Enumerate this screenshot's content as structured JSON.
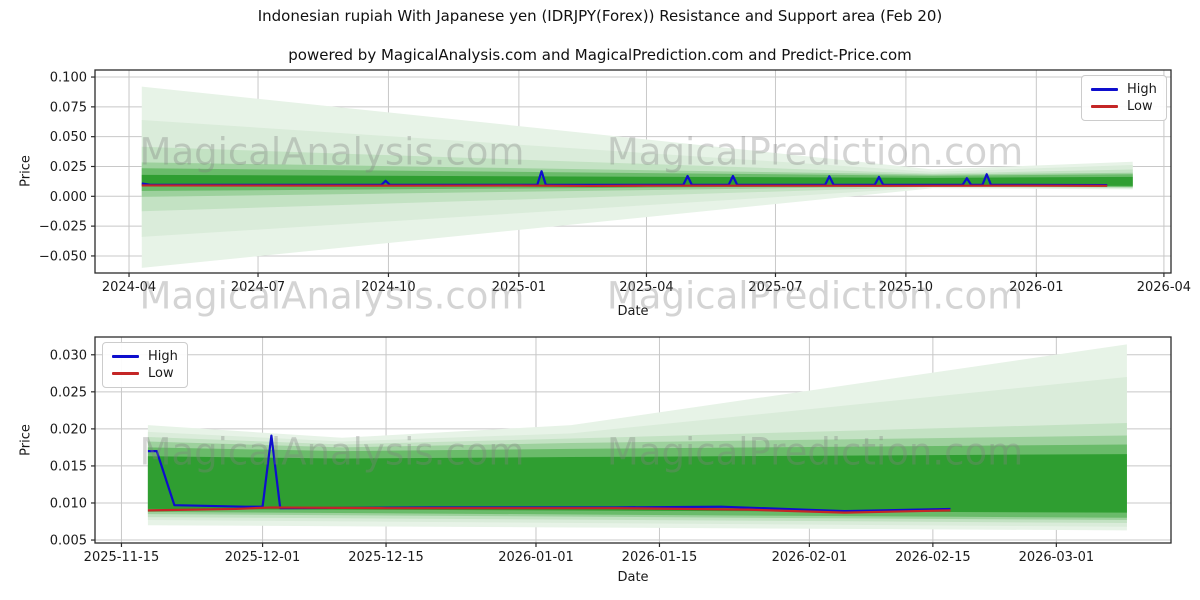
{
  "header": {
    "title": "Indonesian rupiah With Japanese yen (IDRJPY(Forex)) Resistance and Support area (Feb 20)",
    "subtitle": "powered by MagicalAnalysis.com and MagicalPrediction.com and Predict-Price.com"
  },
  "watermarks": {
    "analysis": "MagicalAnalysis.com",
    "prediction": "MagicalPrediction.com"
  },
  "colors": {
    "high": "#0e0ecd",
    "low": "#c42626",
    "band_core": "#2f9e31",
    "grid": "#c8c8c8",
    "spine": "#2b2b2b",
    "tick_label": "#1a1a1a",
    "watermark": "#8c8c8c"
  },
  "chart_data": [
    {
      "type": "area",
      "name": "resistance-support-full-history",
      "xlabel": "Date",
      "ylabel": "Price",
      "grid": true,
      "x_domain": [
        "2024-03-08",
        "2026-04-06"
      ],
      "y_domain": [
        -0.0643,
        0.1059
      ],
      "legend": {
        "position": "upper-right",
        "items": [
          {
            "label": "High"
          },
          {
            "label": "Low"
          }
        ]
      },
      "x_ticks": [
        {
          "date": "2024-04-01",
          "label": "2024-04"
        },
        {
          "date": "2024-07-01",
          "label": "2024-07"
        },
        {
          "date": "2024-10-01",
          "label": "2024-10"
        },
        {
          "date": "2025-01-01",
          "label": "2025-01"
        },
        {
          "date": "2025-04-01",
          "label": "2025-04"
        },
        {
          "date": "2025-07-01",
          "label": "2025-07"
        },
        {
          "date": "2025-10-01",
          "label": "2025-10"
        },
        {
          "date": "2026-01-01",
          "label": "2026-01"
        },
        {
          "date": "2026-04-01",
          "label": "2026-04"
        }
      ],
      "y_ticks": [
        {
          "value": 0.1,
          "label": "0.100"
        },
        {
          "value": 0.075,
          "label": "0.075"
        },
        {
          "value": 0.05,
          "label": "0.050"
        },
        {
          "value": 0.025,
          "label": "0.025"
        },
        {
          "value": 0.0,
          "label": "0.000"
        },
        {
          "value": -0.025,
          "label": "−0.025"
        },
        {
          "value": -0.05,
          "label": "−0.050"
        }
      ],
      "bands": [
        {
          "name": "band-outer",
          "color": "#e7f3e7",
          "top": [
            [
              "2024-04-10",
              0.092
            ],
            [
              "2025-10-20",
              0.0225
            ],
            [
              "2026-03-10",
              0.029
            ]
          ],
          "bottom": [
            [
              "2024-04-10",
              -0.06
            ],
            [
              "2025-10-20",
              0.0068
            ],
            [
              "2026-03-10",
              0.0058
            ]
          ]
        },
        {
          "name": "band-2",
          "color": "#daecda",
          "top": [
            [
              "2024-04-10",
              0.064
            ],
            [
              "2025-10-20",
              0.0205
            ],
            [
              "2026-03-10",
              0.0262
            ]
          ],
          "bottom": [
            [
              "2024-04-10",
              -0.034
            ],
            [
              "2025-10-20",
              0.0076
            ],
            [
              "2026-03-10",
              0.0064
            ]
          ]
        },
        {
          "name": "band-3",
          "color": "#c3e2c3",
          "top": [
            [
              "2024-04-10",
              0.0415
            ],
            [
              "2025-10-20",
              0.019
            ],
            [
              "2026-03-10",
              0.0225
            ]
          ],
          "bottom": [
            [
              "2024-04-10",
              -0.0125
            ],
            [
              "2025-10-20",
              0.0081
            ],
            [
              "2026-03-10",
              0.007
            ]
          ]
        },
        {
          "name": "band-4",
          "color": "#9dd19d",
          "top": [
            [
              "2024-04-10",
              0.0285
            ],
            [
              "2025-10-20",
              0.0182
            ],
            [
              "2026-03-10",
              0.0198
            ]
          ],
          "bottom": [
            [
              "2024-04-10",
              -0.0005
            ],
            [
              "2025-10-20",
              0.0085
            ],
            [
              "2026-03-10",
              0.0076
            ]
          ]
        },
        {
          "name": "band-5",
          "color": "#6abb6a",
          "top": [
            [
              "2024-04-10",
              0.0235
            ],
            [
              "2025-10-20",
              0.0172
            ],
            [
              "2026-03-10",
              0.0185
            ]
          ],
          "bottom": [
            [
              "2024-04-10",
              0.0045
            ],
            [
              "2025-10-20",
              0.0088
            ],
            [
              "2026-03-10",
              0.0079
            ]
          ]
        },
        {
          "name": "band-core",
          "color": "#2f9e31",
          "top": [
            [
              "2024-04-10",
              0.018
            ],
            [
              "2025-10-20",
              0.0155
            ],
            [
              "2026-03-10",
              0.0163
            ]
          ],
          "bottom": [
            [
              "2024-04-10",
              0.0085
            ],
            [
              "2025-10-20",
              0.0091
            ],
            [
              "2026-03-10",
              0.0087
            ]
          ]
        }
      ],
      "series": [
        {
          "name": "High",
          "color": "#0e0ecd",
          "points": [
            [
              "2024-04-10",
              0.0108
            ],
            [
              "2024-04-16",
              0.0096
            ],
            [
              "2024-09-26",
              0.0096
            ],
            [
              "2024-09-29",
              0.013
            ],
            [
              "2024-10-02",
              0.0096
            ],
            [
              "2025-01-14",
              0.0096
            ],
            [
              "2025-01-17",
              0.021
            ],
            [
              "2025-01-20",
              0.0096
            ],
            [
              "2025-04-27",
              0.0096
            ],
            [
              "2025-04-30",
              0.017
            ],
            [
              "2025-05-03",
              0.0096
            ],
            [
              "2025-05-29",
              0.0096
            ],
            [
              "2025-06-01",
              0.017
            ],
            [
              "2025-06-04",
              0.0096
            ],
            [
              "2025-08-05",
              0.0096
            ],
            [
              "2025-08-08",
              0.0168
            ],
            [
              "2025-08-11",
              0.0096
            ],
            [
              "2025-09-09",
              0.0096
            ],
            [
              "2025-09-12",
              0.0163
            ],
            [
              "2025-09-15",
              0.0096
            ],
            [
              "2025-11-10",
              0.0096
            ],
            [
              "2025-11-13",
              0.0152
            ],
            [
              "2025-11-16",
              0.0096
            ],
            [
              "2025-11-24",
              0.0096
            ],
            [
              "2025-11-27",
              0.0185
            ],
            [
              "2025-11-30",
              0.0096
            ],
            [
              "2026-02-20",
              0.0094
            ]
          ]
        },
        {
          "name": "Low",
          "color": "#c42626",
          "points": [
            [
              "2024-04-10",
              0.0091
            ],
            [
              "2024-07-01",
              0.009
            ],
            [
              "2024-10-01",
              0.0089
            ],
            [
              "2025-01-01",
              0.009
            ],
            [
              "2025-02-20",
              0.0087
            ],
            [
              "2025-04-01",
              0.0089
            ],
            [
              "2025-07-01",
              0.0089
            ],
            [
              "2025-10-01",
              0.0088
            ],
            [
              "2026-01-01",
              0.0089
            ],
            [
              "2026-02-20",
              0.0088
            ]
          ]
        }
      ]
    },
    {
      "type": "area",
      "name": "resistance-support-recent-zoom",
      "xlabel": "Date",
      "ylabel": "Price",
      "grid": true,
      "x_domain": [
        "2025-11-12",
        "2026-03-14"
      ],
      "y_domain": [
        0.0046,
        0.0324
      ],
      "legend": {
        "position": "upper-left",
        "items": [
          {
            "label": "High"
          },
          {
            "label": "Low"
          }
        ]
      },
      "x_ticks": [
        {
          "date": "2025-11-15",
          "label": "2025-11-15"
        },
        {
          "date": "2025-12-01",
          "label": "2025-12-01"
        },
        {
          "date": "2025-12-15",
          "label": "2025-12-15"
        },
        {
          "date": "2026-01-01",
          "label": "2026-01-01"
        },
        {
          "date": "2026-01-15",
          "label": "2026-01-15"
        },
        {
          "date": "2026-02-01",
          "label": "2026-02-01"
        },
        {
          "date": "2026-02-15",
          "label": "2026-02-15"
        },
        {
          "date": "2026-03-01",
          "label": "2026-03-01"
        }
      ],
      "y_ticks": [
        {
          "value": 0.03,
          "label": "0.030"
        },
        {
          "value": 0.025,
          "label": "0.025"
        },
        {
          "value": 0.02,
          "label": "0.020"
        },
        {
          "value": 0.015,
          "label": "0.015"
        },
        {
          "value": 0.01,
          "label": "0.010"
        },
        {
          "value": 0.005,
          "label": "0.005"
        }
      ],
      "bands": [
        {
          "name": "band-outer",
          "color": "#e7f3e7",
          "top": [
            [
              "2025-11-18",
              0.0205
            ],
            [
              "2025-12-10",
              0.0188
            ],
            [
              "2026-01-05",
              0.0205
            ],
            [
              "2026-03-09",
              0.0314
            ]
          ],
          "bottom": [
            [
              "2025-11-18",
              0.007
            ],
            [
              "2026-01-05",
              0.0067
            ],
            [
              "2026-03-09",
              0.0063
            ]
          ]
        },
        {
          "name": "band-2",
          "color": "#daecda",
          "top": [
            [
              "2025-11-18",
              0.0196
            ],
            [
              "2025-12-10",
              0.0183
            ],
            [
              "2026-01-05",
              0.0194
            ],
            [
              "2026-03-09",
              0.027
            ]
          ],
          "bottom": [
            [
              "2025-11-18",
              0.0077
            ],
            [
              "2026-03-09",
              0.0068
            ]
          ]
        },
        {
          "name": "band-3",
          "color": "#c3e2c3",
          "top": [
            [
              "2025-11-18",
              0.0189
            ],
            [
              "2025-12-10",
              0.0179
            ],
            [
              "2026-01-05",
              0.0187
            ],
            [
              "2026-03-09",
              0.0208
            ]
          ],
          "bottom": [
            [
              "2025-11-18",
              0.0081
            ],
            [
              "2026-03-09",
              0.0073
            ]
          ]
        },
        {
          "name": "band-4",
          "color": "#9dd19d",
          "top": [
            [
              "2025-11-18",
              0.0183
            ],
            [
              "2025-12-10",
              0.0175
            ],
            [
              "2026-01-05",
              0.0181
            ],
            [
              "2026-03-09",
              0.0191
            ]
          ],
          "bottom": [
            [
              "2025-11-18",
              0.0085
            ],
            [
              "2026-03-09",
              0.0077
            ]
          ]
        },
        {
          "name": "band-5",
          "color": "#6abb6a",
          "top": [
            [
              "2025-11-18",
              0.0175
            ],
            [
              "2025-12-10",
              0.017
            ],
            [
              "2026-01-05",
              0.0173
            ],
            [
              "2026-03-09",
              0.0179
            ]
          ],
          "bottom": [
            [
              "2025-11-18",
              0.0088
            ],
            [
              "2026-03-09",
              0.008
            ]
          ]
        },
        {
          "name": "band-core",
          "color": "#2f9e31",
          "top": [
            [
              "2025-11-18",
              0.0163
            ],
            [
              "2025-12-10",
              0.016
            ],
            [
              "2026-01-05",
              0.0162
            ],
            [
              "2026-03-09",
              0.0166
            ]
          ],
          "bottom": [
            [
              "2025-11-18",
              0.0092
            ],
            [
              "2026-03-09",
              0.0087
            ]
          ]
        }
      ],
      "series": [
        {
          "name": "High",
          "color": "#0e0ecd",
          "points": [
            [
              "2025-11-18",
              0.017
            ],
            [
              "2025-11-19",
              0.017
            ],
            [
              "2025-11-21",
              0.0097
            ],
            [
              "2025-11-29",
              0.0095
            ],
            [
              "2025-12-01",
              0.0095
            ],
            [
              "2025-12-02",
              0.0191
            ],
            [
              "2025-12-03",
              0.0093
            ],
            [
              "2025-12-20",
              0.0094
            ],
            [
              "2026-01-10",
              0.0094
            ],
            [
              "2026-01-22",
              0.0095
            ],
            [
              "2026-02-05",
              0.0089
            ],
            [
              "2026-02-17",
              0.0092
            ]
          ]
        },
        {
          "name": "Low",
          "color": "#c42626",
          "points": [
            [
              "2025-11-18",
              0.009
            ],
            [
              "2025-11-28",
              0.0092
            ],
            [
              "2025-12-02",
              0.0094
            ],
            [
              "2025-12-15",
              0.0093
            ],
            [
              "2026-01-10",
              0.0093
            ],
            [
              "2026-01-25",
              0.0091
            ],
            [
              "2026-02-05",
              0.0087
            ],
            [
              "2026-02-17",
              0.009
            ]
          ]
        }
      ]
    }
  ]
}
